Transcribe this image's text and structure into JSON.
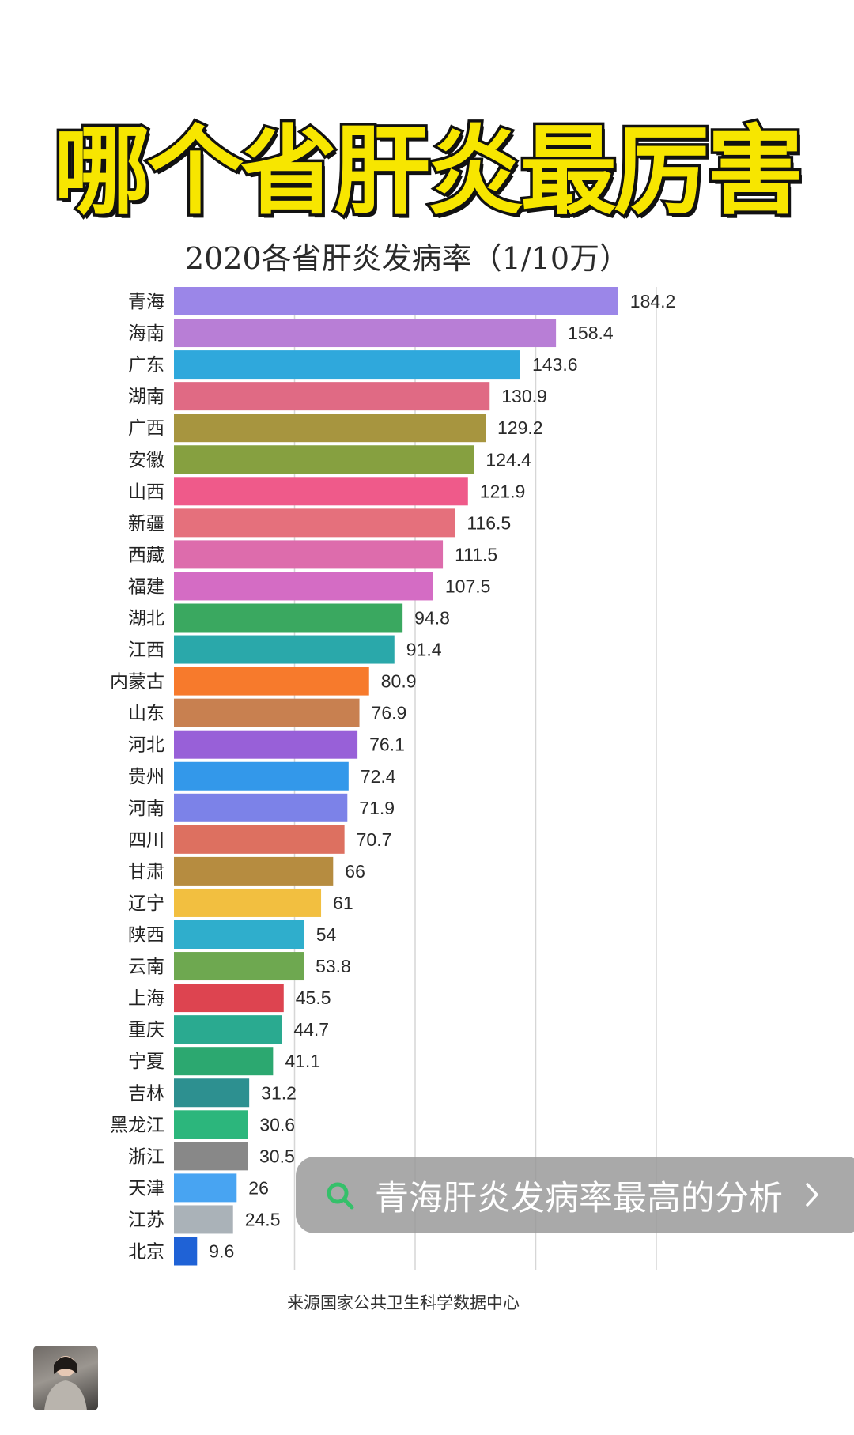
{
  "headline": "哪个省肝炎最厉害",
  "chart_data": {
    "type": "bar",
    "orientation": "horizontal",
    "title": "2020各省肝炎发病率（1/10万）",
    "categories": [
      "青海",
      "海南",
      "广东",
      "湖南",
      "广西",
      "安徽",
      "山西",
      "新疆",
      "西藏",
      "福建",
      "湖北",
      "江西",
      "内蒙古",
      "山东",
      "河北",
      "贵州",
      "河南",
      "四川",
      "甘肃",
      "辽宁",
      "陕西",
      "云南",
      "上海",
      "重庆",
      "宁夏",
      "吉林",
      "黑龙江",
      "浙江",
      "天津",
      "江苏",
      "北京"
    ],
    "values": [
      184.2,
      158.4,
      143.6,
      130.9,
      129.2,
      124.4,
      121.9,
      116.5,
      111.5,
      107.5,
      94.8,
      91.4,
      80.9,
      76.9,
      76.1,
      72.4,
      71.9,
      70.7,
      66,
      61,
      54,
      53.8,
      45.5,
      44.7,
      41.1,
      31.2,
      30.6,
      30.5,
      26,
      24.5,
      9.6
    ],
    "value_labels": [
      "184.2",
      "158.4",
      "143.6",
      "130.9",
      "129.2",
      "124.4",
      "121.9",
      "116.5",
      "111.5",
      "107.5",
      "94.8",
      "91.4",
      "80.9",
      "76.9",
      "76.1",
      "72.4",
      "71.9",
      "70.7",
      "66",
      "61",
      "54",
      "53.8",
      "45.5",
      "44.7",
      "41.1",
      "31.2",
      "30.6",
      "30.5",
      "26",
      "24.5",
      "9.6"
    ],
    "colors": [
      "#9b86e8",
      "#b87ed6",
      "#2fa8dc",
      "#e06a84",
      "#a7953f",
      "#86a040",
      "#ef5a8a",
      "#e5707c",
      "#dd6cac",
      "#d46cc4",
      "#3aa860",
      "#2aa8aa",
      "#f77a2c",
      "#c88050",
      "#9860d8",
      "#3398ea",
      "#7c82e8",
      "#dd7060",
      "#b68c40",
      "#f2bf40",
      "#2faecc",
      "#6ea850",
      "#dd4450",
      "#2aaa90",
      "#2ca870",
      "#2d9090",
      "#2cb67c",
      "#888888",
      "#48a4f2",
      "#aab2b8",
      "#1f62d6"
    ],
    "xlim": [
      0,
      200
    ],
    "gridlines": [
      50,
      100,
      150,
      200
    ],
    "grid": true
  },
  "source_note": "来源国家公共卫生科学数据中心",
  "search_bar": {
    "text": "青海肝炎发病率最高的分析",
    "accent": "#35c06a"
  },
  "avatar": {
    "label": "用户头像"
  }
}
